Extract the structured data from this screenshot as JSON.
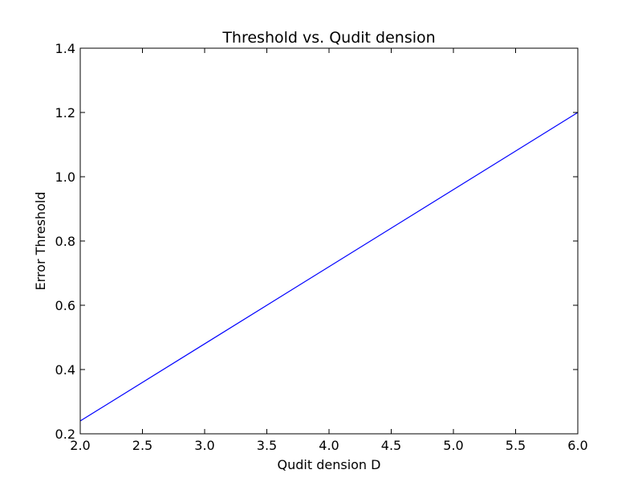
{
  "chart_data": {
    "type": "line",
    "title": "Threshold vs. Qudit dension",
    "xlabel": "Qudit dension D",
    "ylabel": "Error Threshold",
    "xlim": [
      2.0,
      6.0
    ],
    "ylim": [
      0.2,
      1.4
    ],
    "x_ticks": [
      "2.0",
      "2.5",
      "3.0",
      "3.5",
      "4.0",
      "4.5",
      "5.0",
      "5.5",
      "6.0"
    ],
    "y_ticks": [
      "0.2",
      "0.4",
      "0.6",
      "0.8",
      "1.0",
      "1.2",
      "1.4"
    ],
    "grid": false,
    "series": [
      {
        "color": "#0000ff",
        "x": [
          2.0,
          6.0
        ],
        "y": [
          0.24,
          1.2
        ]
      }
    ]
  }
}
